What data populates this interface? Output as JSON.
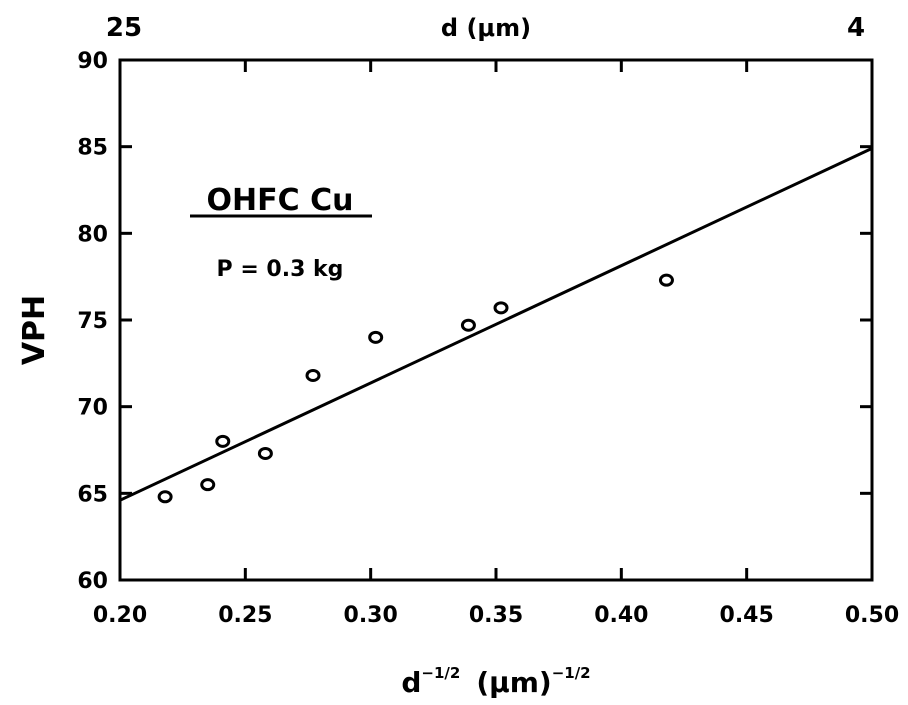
{
  "chart_data": {
    "type": "scatter",
    "title": "",
    "xlabel": "d",
    "xlabel_exp": "−1/2",
    "xlabel_unit": "(μm)",
    "xlabel_unit_exp": "−1/2",
    "ylabel": "VPH",
    "top_axis_label": "d (μm)",
    "top_axis_left": "25",
    "top_axis_right": "4",
    "xlim": [
      0.2,
      0.5
    ],
    "ylim": [
      60,
      90
    ],
    "x_ticks": [
      "0.20",
      "0.25",
      "0.30",
      "0.35",
      "0.40",
      "0.45",
      "0.50"
    ],
    "y_ticks": [
      "60",
      "65",
      "70",
      "75",
      "80",
      "85",
      "90"
    ],
    "grid": false,
    "annotation_material": "OHFC Cu",
    "annotation_load": "P = 0.3 kg",
    "series": [
      {
        "points": [
          {
            "x": 0.218,
            "y": 64.8
          },
          {
            "x": 0.235,
            "y": 65.5
          },
          {
            "x": 0.241,
            "y": 68.0
          },
          {
            "x": 0.258,
            "y": 67.3
          },
          {
            "x": 0.277,
            "y": 71.8
          },
          {
            "x": 0.302,
            "y": 74.0
          },
          {
            "x": 0.339,
            "y": 74.7
          },
          {
            "x": 0.352,
            "y": 75.7
          },
          {
            "x": 0.418,
            "y": 77.3
          }
        ]
      }
    ],
    "fit_line": {
      "x": [
        0.2,
        0.5
      ],
      "y": [
        64.6,
        84.9
      ]
    }
  }
}
